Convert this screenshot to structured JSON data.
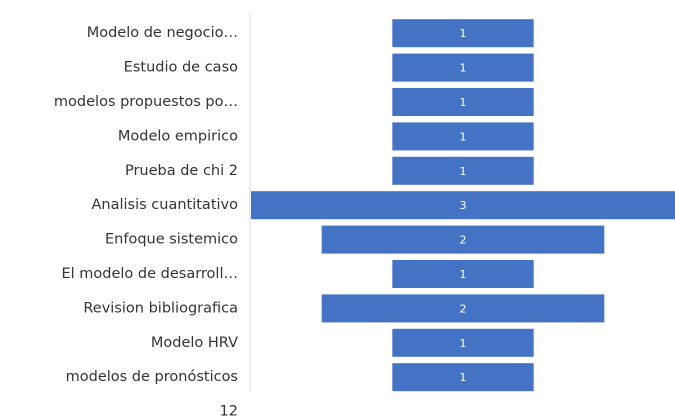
{
  "chart_data": {
    "type": "funnel",
    "categories": [
      "Modelo de negocio…",
      "Estudio de caso",
      "modelos propuestos po…",
      "Modelo empirico",
      "Prueba de chi 2",
      "Analisis cuantitativo",
      "Enfoque sistemico",
      "El modelo de desarroll…",
      "Revision bibliografica",
      "Modelo HRV",
      "modelos de pronósticos",
      "12"
    ],
    "values": [
      1,
      1,
      1,
      1,
      1,
      3,
      2,
      1,
      2,
      1,
      1,
      null
    ],
    "color": "#4472c4"
  }
}
